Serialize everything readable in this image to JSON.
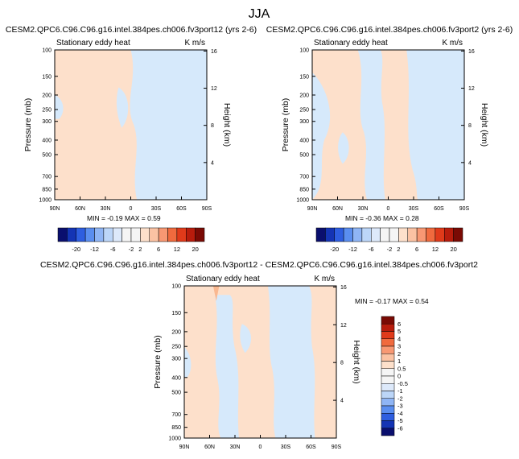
{
  "page": {
    "title": "JJA"
  },
  "colors": {
    "warm_light": "#fde0cb",
    "cool_light": "#d6e9fb",
    "warm_mid": "#f9b891",
    "frame": "#000000"
  },
  "chart_data": [
    {
      "type": "heatmap",
      "id": "top-left",
      "title": "CESM2.QPC6.C96.C96.g16.intel.384pes.ch006.fv3port12 (yrs 2-6)",
      "subtitle_left": "Stationary eddy heat",
      "subtitle_right": "K m/s",
      "xlabel": "",
      "ylabel": "Pressure (mb)",
      "y2label": "Height (km)",
      "x_ticks": [
        "90N",
        "60N",
        "30N",
        "0",
        "30S",
        "60S",
        "90S"
      ],
      "x_values": [
        90,
        60,
        30,
        0,
        -30,
        -60,
        -90
      ],
      "y_ticks": [
        "100",
        "150",
        "200",
        "250",
        "300",
        "400",
        "500",
        "700",
        "850",
        "1000"
      ],
      "y_values": [
        100,
        150,
        200,
        250,
        300,
        400,
        500,
        700,
        850,
        1000
      ],
      "y2_ticks": [
        "16",
        "12",
        "8",
        "4"
      ],
      "y2_values": [
        16,
        12,
        8,
        4
      ],
      "stats": {
        "min_label": "MIN =",
        "min": "-0.19",
        "max_label": "MAX =",
        "max": "0.59"
      }
    },
    {
      "type": "heatmap",
      "id": "top-right",
      "title": "CESM2.QPC6.C96.C96.g16.intel.384pes.ch006.fv3port2 (yrs 2-6)",
      "subtitle_left": "Stationary eddy heat",
      "subtitle_right": "K m/s",
      "xlabel": "",
      "ylabel": "Pressure (mb)",
      "y2label": "Height (km)",
      "x_ticks": [
        "90N",
        "60N",
        "30N",
        "0",
        "30S",
        "60S",
        "90S"
      ],
      "x_values": [
        90,
        60,
        30,
        0,
        -30,
        -60,
        -90
      ],
      "y_ticks": [
        "100",
        "150",
        "200",
        "250",
        "300",
        "400",
        "500",
        "700",
        "850",
        "1000"
      ],
      "y_values": [
        100,
        150,
        200,
        250,
        300,
        400,
        500,
        700,
        850,
        1000
      ],
      "y2_ticks": [
        "16",
        "12",
        "8",
        "4"
      ],
      "y2_values": [
        16,
        12,
        8,
        4
      ],
      "stats": {
        "min_label": "MIN =",
        "min": "-0.36",
        "max_label": "MAX =",
        "max": "0.28"
      }
    },
    {
      "type": "heatmap",
      "id": "bottom-diff",
      "title": "CESM2.QPC6.C96.C96.g16.intel.384pes.ch006.fv3port12 - CESM2.QPC6.C96.C96.g16.intel.384pes.ch006.fv3port2",
      "subtitle_left": "Stationary eddy heat",
      "subtitle_right": "K m/s",
      "xlabel": "",
      "ylabel": "Pressure (mb)",
      "y2label": "Height (km)",
      "x_ticks": [
        "90N",
        "60N",
        "30N",
        "0",
        "30S",
        "60S",
        "90S"
      ],
      "x_values": [
        90,
        60,
        30,
        0,
        -30,
        -60,
        -90
      ],
      "y_ticks": [
        "100",
        "150",
        "200",
        "250",
        "300",
        "400",
        "500",
        "700",
        "850",
        "1000"
      ],
      "y_values": [
        100,
        150,
        200,
        250,
        300,
        400,
        500,
        700,
        850,
        1000
      ],
      "y2_ticks": [
        "16",
        "12",
        "8",
        "4"
      ],
      "y2_values": [
        16,
        12,
        8,
        4
      ],
      "stats": {
        "min_label": "MIN =",
        "min": "-0.17",
        "max_label": "MAX =",
        "max": "0.54"
      }
    }
  ],
  "colorbars": {
    "horizontal": {
      "labels": [
        "-20",
        "-12",
        "-6",
        "-2",
        "2",
        "6",
        "12",
        "20"
      ],
      "colors": [
        "#0a0f6e",
        "#1434b4",
        "#2e5ee0",
        "#5a8ef0",
        "#8fb5f5",
        "#bcd6f8",
        "#dde9fa",
        "#f5f5f5",
        "#f5f5f5",
        "#fde0cb",
        "#fbc2a3",
        "#f89873",
        "#f06a3e",
        "#e03a1a",
        "#b81c0c",
        "#7a0a04"
      ]
    },
    "vertical": {
      "labels": [
        "6",
        "5",
        "4",
        "3",
        "2",
        "1",
        "0.5",
        "0",
        "-0.5",
        "-1",
        "-2",
        "-3",
        "-4",
        "-5",
        "-6"
      ],
      "colors": [
        "#7a0a04",
        "#b81c0c",
        "#e03a1a",
        "#f06a3e",
        "#f89873",
        "#fbc2a3",
        "#fde0cb",
        "#f5f5f5",
        "#f5f5f5",
        "#dde9fa",
        "#bcd6f8",
        "#8fb5f5",
        "#5a8ef0",
        "#2e5ee0",
        "#1434b4",
        "#0a0f6e"
      ]
    }
  }
}
